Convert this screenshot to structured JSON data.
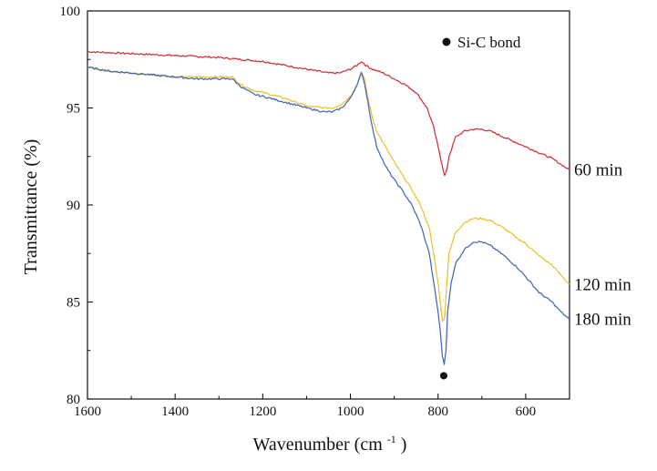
{
  "chart_data": {
    "type": "line",
    "title": "",
    "xlabel": "Wavenumber (cm",
    "xlabel_sup": "-1",
    "xlabel_end": ")",
    "ylabel": "Transmittance (%)",
    "xlim": [
      1600,
      500
    ],
    "ylim": [
      80,
      100
    ],
    "x_reversed": true,
    "x_ticks": [
      1600,
      1400,
      1200,
      1000,
      800,
      600
    ],
    "y_ticks": [
      80,
      85,
      90,
      95,
      100
    ],
    "legend": {
      "marker": "filled-circle",
      "label": "Si-C bond",
      "placement": "top-right"
    },
    "annotations": [
      {
        "type": "marker",
        "x": 787,
        "y": 81.2,
        "label": "Si-C bond"
      }
    ],
    "series": [
      {
        "name": "60 min",
        "color": "#d0303a",
        "points": [
          [
            1600,
            97.9
          ],
          [
            1500,
            97.8
          ],
          [
            1400,
            97.7
          ],
          [
            1300,
            97.6
          ],
          [
            1250,
            97.5
          ],
          [
            1200,
            97.4
          ],
          [
            1150,
            97.2
          ],
          [
            1100,
            97.0
          ],
          [
            1050,
            96.8
          ],
          [
            1025,
            96.8
          ],
          [
            1000,
            97.0
          ],
          [
            985,
            97.2
          ],
          [
            975,
            97.4
          ],
          [
            965,
            97.2
          ],
          [
            950,
            97.0
          ],
          [
            925,
            96.8
          ],
          [
            900,
            96.5
          ],
          [
            875,
            96.2
          ],
          [
            850,
            95.8
          ],
          [
            825,
            95.0
          ],
          [
            810,
            94.0
          ],
          [
            800,
            93.0
          ],
          [
            790,
            92.0
          ],
          [
            785,
            91.5
          ],
          [
            780,
            91.8
          ],
          [
            775,
            92.5
          ],
          [
            760,
            93.5
          ],
          [
            740,
            93.8
          ],
          [
            720,
            93.9
          ],
          [
            700,
            93.9
          ],
          [
            680,
            93.8
          ],
          [
            650,
            93.5
          ],
          [
            620,
            93.2
          ],
          [
            600,
            93.0
          ],
          [
            570,
            92.7
          ],
          [
            540,
            92.4
          ],
          [
            520,
            92.1
          ],
          [
            500,
            91.8
          ]
        ]
      },
      {
        "name": "120 min",
        "color": "#e8c233",
        "points": [
          [
            1600,
            97.1
          ],
          [
            1550,
            96.9
          ],
          [
            1500,
            96.8
          ],
          [
            1450,
            96.7
          ],
          [
            1400,
            96.6
          ],
          [
            1350,
            96.6
          ],
          [
            1300,
            96.6
          ],
          [
            1270,
            96.6
          ],
          [
            1250,
            96.2
          ],
          [
            1220,
            95.9
          ],
          [
            1200,
            95.8
          ],
          [
            1150,
            95.5
          ],
          [
            1100,
            95.1
          ],
          [
            1060,
            95.0
          ],
          [
            1040,
            95.0
          ],
          [
            1020,
            95.2
          ],
          [
            1000,
            95.6
          ],
          [
            985,
            96.2
          ],
          [
            975,
            96.8
          ],
          [
            968,
            96.5
          ],
          [
            960,
            95.5
          ],
          [
            950,
            94.5
          ],
          [
            940,
            93.8
          ],
          [
            920,
            93.0
          ],
          [
            900,
            92.2
          ],
          [
            880,
            91.5
          ],
          [
            860,
            90.8
          ],
          [
            840,
            90.0
          ],
          [
            820,
            88.8
          ],
          [
            810,
            87.5
          ],
          [
            800,
            86.0
          ],
          [
            795,
            85.0
          ],
          [
            790,
            84.0
          ],
          [
            785,
            84.2
          ],
          [
            780,
            86.0
          ],
          [
            775,
            87.5
          ],
          [
            760,
            88.6
          ],
          [
            740,
            89.1
          ],
          [
            720,
            89.3
          ],
          [
            700,
            89.3
          ],
          [
            680,
            89.2
          ],
          [
            650,
            88.8
          ],
          [
            620,
            88.3
          ],
          [
            600,
            88.0
          ],
          [
            570,
            87.4
          ],
          [
            540,
            86.9
          ],
          [
            520,
            86.4
          ],
          [
            500,
            85.9
          ]
        ]
      },
      {
        "name": "180 min",
        "color": "#4466b8",
        "points": [
          [
            1600,
            97.1
          ],
          [
            1550,
            96.9
          ],
          [
            1500,
            96.8
          ],
          [
            1450,
            96.7
          ],
          [
            1400,
            96.6
          ],
          [
            1350,
            96.5
          ],
          [
            1300,
            96.5
          ],
          [
            1270,
            96.5
          ],
          [
            1250,
            96.1
          ],
          [
            1220,
            95.7
          ],
          [
            1200,
            95.6
          ],
          [
            1150,
            95.3
          ],
          [
            1100,
            95.0
          ],
          [
            1060,
            94.8
          ],
          [
            1040,
            94.8
          ],
          [
            1020,
            95.0
          ],
          [
            1000,
            95.5
          ],
          [
            985,
            96.2
          ],
          [
            975,
            96.8
          ],
          [
            968,
            96.3
          ],
          [
            960,
            95.3
          ],
          [
            950,
            94.0
          ],
          [
            940,
            93.0
          ],
          [
            920,
            92.0
          ],
          [
            900,
            91.3
          ],
          [
            880,
            90.7
          ],
          [
            860,
            90.0
          ],
          [
            840,
            89.0
          ],
          [
            820,
            87.5
          ],
          [
            810,
            86.0
          ],
          [
            800,
            84.5
          ],
          [
            795,
            83.5
          ],
          [
            790,
            82.2
          ],
          [
            786,
            81.8
          ],
          [
            782,
            82.5
          ],
          [
            778,
            84.5
          ],
          [
            770,
            86.0
          ],
          [
            760,
            87.0
          ],
          [
            740,
            87.7
          ],
          [
            720,
            88.1
          ],
          [
            700,
            88.1
          ],
          [
            680,
            87.9
          ],
          [
            650,
            87.4
          ],
          [
            620,
            86.8
          ],
          [
            600,
            86.3
          ],
          [
            570,
            85.5
          ],
          [
            540,
            85.0
          ],
          [
            520,
            84.5
          ],
          [
            500,
            84.1
          ]
        ]
      }
    ]
  }
}
